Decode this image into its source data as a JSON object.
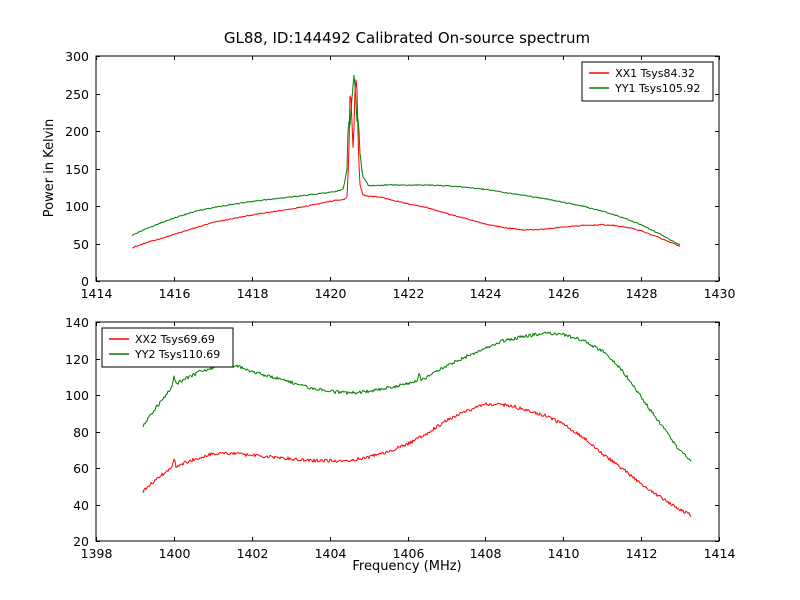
{
  "title": "GL88, ID:144492 Calibrated On-source spectrum",
  "xlabel": "Frequency (MHz)",
  "ylabel": "Power in Kelvin",
  "chart_data": [
    {
      "type": "line",
      "xlim": [
        1414,
        1430
      ],
      "ylim": [
        0,
        300
      ],
      "xticks": [
        1414,
        1416,
        1418,
        1420,
        1422,
        1424,
        1426,
        1428,
        1430
      ],
      "yticks": [
        0,
        50,
        100,
        150,
        200,
        250,
        300
      ],
      "grid": false,
      "legend_position": "upper-right",
      "series": [
        {
          "name": "XX1 Tsys84.32",
          "color": "#ff0000",
          "points": [
            [
              1414.9,
              44
            ],
            [
              1415.3,
              51
            ],
            [
              1416,
              62
            ],
            [
              1416.5,
              70
            ],
            [
              1417,
              78
            ],
            [
              1417.5,
              83
            ],
            [
              1418,
              88
            ],
            [
              1418.5,
              92
            ],
            [
              1419,
              96
            ],
            [
              1419.5,
              101
            ],
            [
              1420,
              106
            ],
            [
              1420.2,
              108
            ],
            [
              1420.35,
              108
            ],
            [
              1420.45,
              112
            ],
            [
              1420.5,
              180
            ],
            [
              1420.53,
              265
            ],
            [
              1420.56,
              230
            ],
            [
              1420.6,
              178
            ],
            [
              1420.63,
              210
            ],
            [
              1420.66,
              272
            ],
            [
              1420.7,
              262
            ],
            [
              1420.74,
              170
            ],
            [
              1420.78,
              128
            ],
            [
              1420.85,
              115
            ],
            [
              1421.0,
              113
            ],
            [
              1421.3,
              112
            ],
            [
              1421.6,
              108
            ],
            [
              1422,
              103
            ],
            [
              1422.5,
              98
            ],
            [
              1423,
              90
            ],
            [
              1423.5,
              83
            ],
            [
              1424,
              76
            ],
            [
              1424.5,
              71
            ],
            [
              1425,
              68
            ],
            [
              1425.5,
              69
            ],
            [
              1426,
              72
            ],
            [
              1426.5,
              74
            ],
            [
              1427,
              75
            ],
            [
              1427.3,
              74
            ],
            [
              1427.7,
              71
            ],
            [
              1428,
              67
            ],
            [
              1428.5,
              57
            ],
            [
              1429,
              46
            ]
          ]
        },
        {
          "name": "YY1 Tsys105.92",
          "color": "#007f00",
          "points": [
            [
              1414.9,
              60
            ],
            [
              1415.3,
              70
            ],
            [
              1416,
              84
            ],
            [
              1416.5,
              92
            ],
            [
              1417,
              98
            ],
            [
              1417.5,
              102
            ],
            [
              1418,
              106
            ],
            [
              1418.5,
              109
            ],
            [
              1419,
              112
            ],
            [
              1419.5,
              115
            ],
            [
              1420,
              118
            ],
            [
              1420.2,
              120
            ],
            [
              1420.35,
              122
            ],
            [
              1420.45,
              150
            ],
            [
              1420.48,
              218
            ],
            [
              1420.52,
              205
            ],
            [
              1420.56,
              235
            ],
            [
              1420.6,
              260
            ],
            [
              1420.63,
              277
            ],
            [
              1420.66,
              255
            ],
            [
              1420.7,
              212
            ],
            [
              1420.74,
              218
            ],
            [
              1420.78,
              170
            ],
            [
              1420.85,
              140
            ],
            [
              1421.0,
              127
            ],
            [
              1421.5,
              128
            ],
            [
              1422,
              128
            ],
            [
              1422.5,
              128
            ],
            [
              1423,
              127
            ],
            [
              1423.5,
              125
            ],
            [
              1424,
              122
            ],
            [
              1424.5,
              118
            ],
            [
              1425,
              114
            ],
            [
              1425.5,
              110
            ],
            [
              1426,
              105
            ],
            [
              1426.5,
              100
            ],
            [
              1427,
              93
            ],
            [
              1427.5,
              85
            ],
            [
              1428,
              75
            ],
            [
              1428.5,
              62
            ],
            [
              1429,
              48
            ]
          ]
        }
      ]
    },
    {
      "type": "line",
      "xlabel": "Frequency (MHz)",
      "xlim": [
        1398,
        1414
      ],
      "ylim": [
        20,
        140
      ],
      "xticks": [
        1398,
        1400,
        1402,
        1404,
        1406,
        1408,
        1410,
        1412,
        1414
      ],
      "yticks": [
        20,
        40,
        60,
        80,
        100,
        120,
        140
      ],
      "grid": false,
      "legend_position": "upper-left",
      "series": [
        {
          "name": "XX2 Tsys69.69",
          "color": "#ff0000",
          "points": [
            [
              1399.2,
              47
            ],
            [
              1399.5,
              53
            ],
            [
              1399.8,
              58
            ],
            [
              1399.95,
              60
            ],
            [
              1400.0,
              66
            ],
            [
              1400.05,
              61
            ],
            [
              1400.3,
              63
            ],
            [
              1400.7,
              66
            ],
            [
              1401,
              68
            ],
            [
              1401.5,
              68
            ],
            [
              1402,
              67
            ],
            [
              1402.5,
              66
            ],
            [
              1403,
              65
            ],
            [
              1403.5,
              64
            ],
            [
              1404,
              64
            ],
            [
              1404.5,
              64
            ],
            [
              1405,
              66
            ],
            [
              1405.5,
              69
            ],
            [
              1406,
              73
            ],
            [
              1406.5,
              79
            ],
            [
              1407,
              86
            ],
            [
              1407.5,
              91
            ],
            [
              1408,
              95
            ],
            [
              1408.3,
              95
            ],
            [
              1408.7,
              94
            ],
            [
              1409,
              92
            ],
            [
              1409.5,
              89
            ],
            [
              1410,
              84
            ],
            [
              1410.5,
              77
            ],
            [
              1411,
              68
            ],
            [
              1411.5,
              60
            ],
            [
              1412,
              51
            ],
            [
              1412.5,
              44
            ],
            [
              1413,
              37
            ],
            [
              1413.3,
              34
            ]
          ]
        },
        {
          "name": "YY2 Tsys110.69",
          "color": "#007f00",
          "points": [
            [
              1399.2,
              83
            ],
            [
              1399.5,
              92
            ],
            [
              1399.8,
              100
            ],
            [
              1399.95,
              104
            ],
            [
              1400.0,
              110
            ],
            [
              1400.05,
              106
            ],
            [
              1400.3,
              109
            ],
            [
              1400.7,
              113
            ],
            [
              1401,
              115
            ],
            [
              1401.3,
              116
            ],
            [
              1401.6,
              116
            ],
            [
              1402,
              113
            ],
            [
              1402.5,
              110
            ],
            [
              1403,
              107
            ],
            [
              1403.5,
              104
            ],
            [
              1404,
              102
            ],
            [
              1404.5,
              101
            ],
            [
              1405,
              102
            ],
            [
              1405.5,
              104
            ],
            [
              1406,
              106
            ],
            [
              1406.25,
              108
            ],
            [
              1406.3,
              113
            ],
            [
              1406.35,
              108
            ],
            [
              1406.7,
              112
            ],
            [
              1407,
              116
            ],
            [
              1407.5,
              121
            ],
            [
              1408,
              126
            ],
            [
              1408.5,
              130
            ],
            [
              1409,
              132
            ],
            [
              1409.5,
              134
            ],
            [
              1410,
              133
            ],
            [
              1410.5,
              130
            ],
            [
              1411,
              124
            ],
            [
              1411.5,
              114
            ],
            [
              1412,
              99
            ],
            [
              1412.5,
              84
            ],
            [
              1413,
              69
            ],
            [
              1413.3,
              64
            ]
          ]
        }
      ]
    }
  ]
}
